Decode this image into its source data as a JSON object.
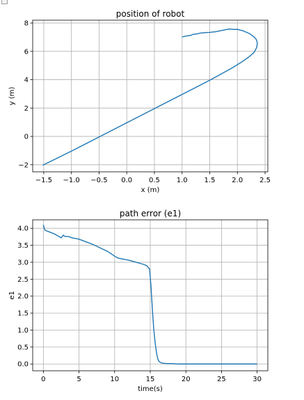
{
  "window": {
    "icon": "window-icon"
  },
  "chart_data": [
    {
      "type": "line",
      "title": "position of robot",
      "xlabel": "x (m)",
      "ylabel": "y (m)",
      "xlim": [
        -1.7,
        2.55
      ],
      "ylim": [
        -2.5,
        8.2
      ],
      "xticks": [
        -1.5,
        -1.0,
        -0.5,
        0.0,
        0.5,
        1.0,
        1.5,
        2.0,
        2.5
      ],
      "xtick_labels": [
        "−1.5",
        "−1.0",
        "−0.5",
        "0.0",
        "0.5",
        "1.0",
        "1.5",
        "2.0",
        "2.5"
      ],
      "yticks": [
        -2,
        0,
        2,
        4,
        6,
        8
      ],
      "ytick_labels": [
        "−2",
        "0",
        "2",
        "4",
        "6",
        "8"
      ],
      "grid": true,
      "line_color": "#1f77b4",
      "series": [
        {
          "x": [
            -1.52,
            -1.0,
            -0.5,
            0.0,
            0.5,
            1.0,
            1.5,
            1.7,
            1.9,
            2.05,
            2.2,
            2.3,
            2.35,
            2.36,
            2.34,
            2.3,
            2.22,
            2.1,
            2.0,
            1.92,
            1.85,
            1.8,
            1.75,
            1.7,
            1.65,
            1.6,
            1.55,
            1.5,
            1.45,
            1.4,
            1.35,
            1.3,
            1.25,
            1.2,
            1.15,
            1.1,
            1.05,
            1.0
          ],
          "y": [
            -2.04,
            -1.04,
            -0.04,
            0.96,
            1.96,
            2.96,
            3.96,
            4.39,
            4.82,
            5.18,
            5.58,
            5.92,
            6.28,
            6.6,
            6.85,
            7.02,
            7.25,
            7.45,
            7.55,
            7.55,
            7.58,
            7.54,
            7.5,
            7.46,
            7.42,
            7.38,
            7.36,
            7.34,
            7.33,
            7.31,
            7.3,
            7.26,
            7.22,
            7.2,
            7.12,
            7.1,
            7.06,
            7.02
          ]
        }
      ]
    },
    {
      "type": "line",
      "title": "path error (e1)",
      "xlabel": "time(s)",
      "ylabel": "e1",
      "xlim": [
        -1.5,
        31.5
      ],
      "ylim": [
        -0.2,
        4.25
      ],
      "xticks": [
        0,
        5,
        10,
        15,
        20,
        25,
        30
      ],
      "xtick_labels": [
        "0",
        "5",
        "10",
        "15",
        "20",
        "25",
        "30"
      ],
      "yticks": [
        0.0,
        0.5,
        1.0,
        1.5,
        2.0,
        2.5,
        3.0,
        3.5,
        4.0
      ],
      "ytick_labels": [
        "0.0",
        "0.5",
        "1.0",
        "1.5",
        "2.0",
        "2.5",
        "3.0",
        "3.5",
        "4.0"
      ],
      "grid": true,
      "line_color": "#1f77b4",
      "series": [
        {
          "x": [
            0.0,
            0.2,
            0.5,
            1.0,
            1.5,
            2.0,
            2.5,
            2.8,
            3.0,
            3.5,
            4.0,
            5.0,
            6.0,
            7.0,
            8.0,
            9.0,
            10.0,
            10.5,
            11.0,
            12.0,
            13.0,
            14.0,
            14.5,
            14.9,
            15.1,
            15.3,
            15.5,
            15.7,
            15.9,
            16.1,
            16.3,
            16.6,
            17.0,
            17.5,
            18.0,
            19.0,
            20.0,
            25.0,
            30.0
          ],
          "y": [
            4.1,
            3.95,
            3.92,
            3.88,
            3.84,
            3.78,
            3.72,
            3.8,
            3.76,
            3.76,
            3.72,
            3.68,
            3.6,
            3.52,
            3.42,
            3.32,
            3.18,
            3.12,
            3.1,
            3.06,
            3.0,
            2.94,
            2.9,
            2.8,
            2.3,
            1.6,
            1.0,
            0.6,
            0.3,
            0.12,
            0.06,
            0.03,
            0.02,
            0.01,
            0.01,
            0.0,
            0.0,
            0.0,
            0.0
          ]
        }
      ]
    }
  ]
}
